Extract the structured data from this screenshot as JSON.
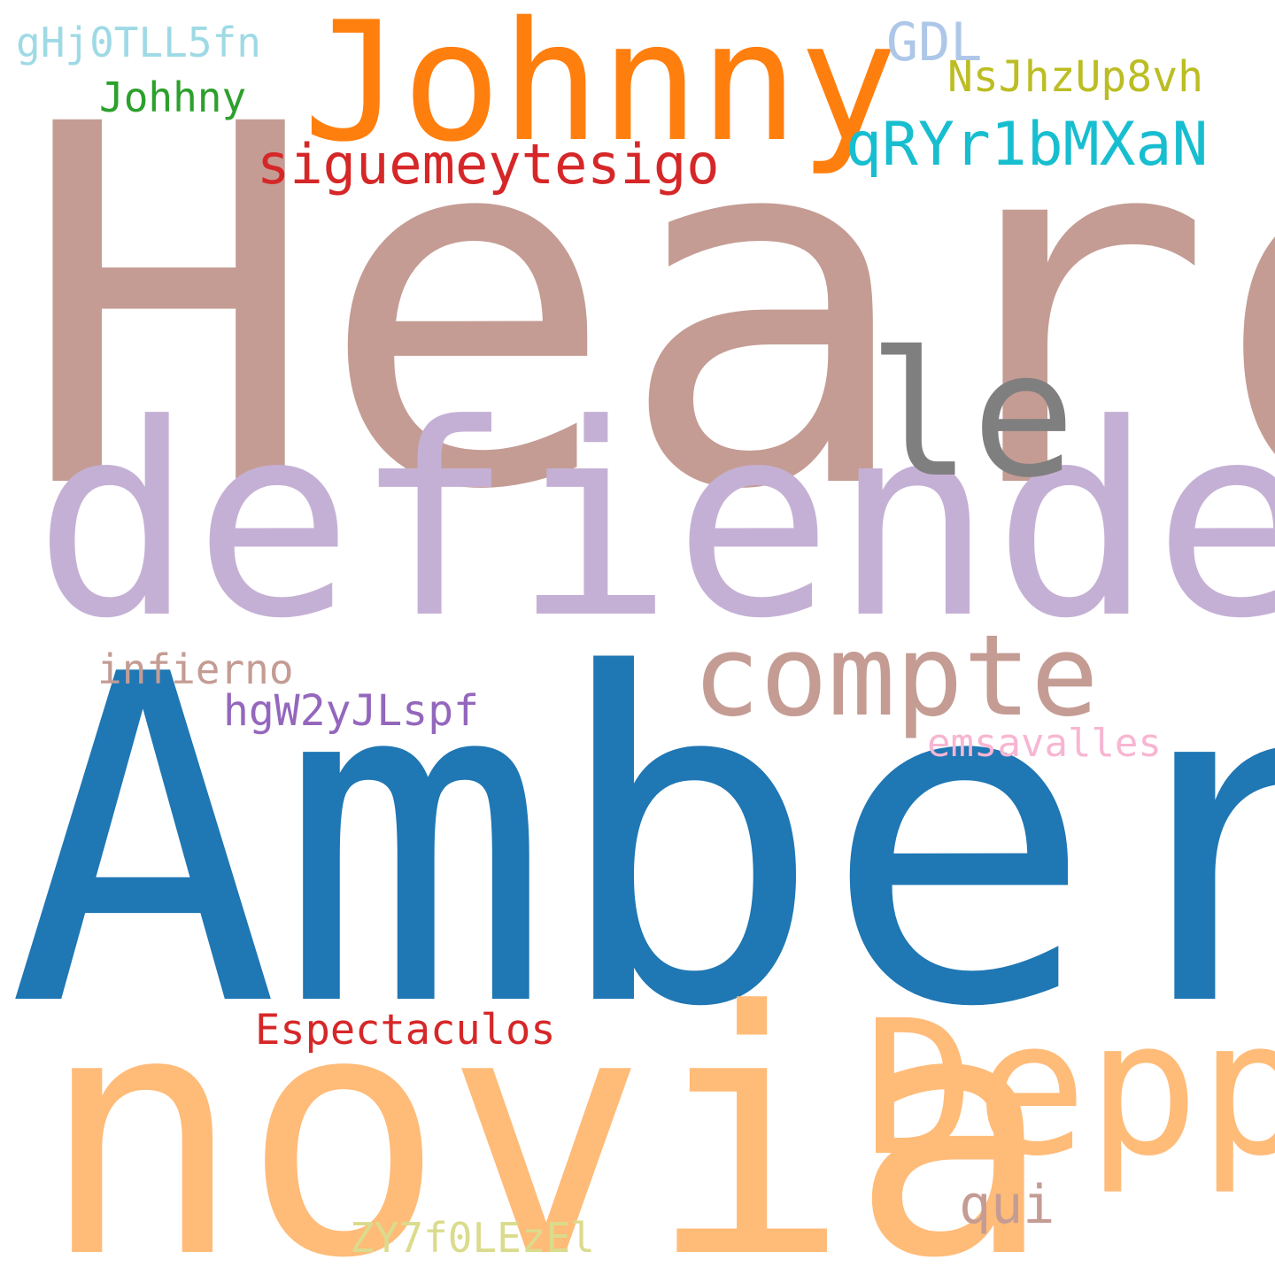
{
  "words": {
    "heard": {
      "text": "Heard",
      "color": "#c49c94"
    },
    "amber": {
      "text": "Amber",
      "color": "#1f77b4"
    },
    "defiende": {
      "text": "defiende",
      "color": "#c5b0d5"
    },
    "novia": {
      "text": "novia",
      "color": "#ffbb78"
    },
    "johnny": {
      "text": "Johnny",
      "color": "#ff7f0e"
    },
    "depp": {
      "text": "Depp",
      "color": "#ffbb78"
    },
    "le": {
      "text": "le",
      "color": "#7f7f7f"
    },
    "compte": {
      "text": "compte",
      "color": "#c49c94"
    },
    "siguemeytesigo": {
      "text": "siguemeytesigo",
      "color": "#d62728"
    },
    "qryr1bmxan": {
      "text": "qRYr1bMXaN",
      "color": "#17becf"
    },
    "gdl": {
      "text": "GDL",
      "color": "#aec7e8"
    },
    "nsjhzup8vh": {
      "text": "NsJhzUp8vh",
      "color": "#bcbd22"
    },
    "ghj0tll5fn": {
      "text": "gHj0TLL5fn",
      "color": "#9edae5"
    },
    "johhny": {
      "text": "Johhny",
      "color": "#2ca02c"
    },
    "infierno": {
      "text": "infierno",
      "color": "#c49c94"
    },
    "hgw2yjlspf": {
      "text": "hgW2yJLspf",
      "color": "#9467bd"
    },
    "emsavalles": {
      "text": "emsavalles",
      "color": "#f7b6d2"
    },
    "espectaculos": {
      "text": "Espectaculos",
      "color": "#d62728"
    },
    "qui": {
      "text": "qui",
      "color": "#c49c94"
    },
    "zy7f0lezel": {
      "text": "ZY7f0LEzEl",
      "color": "#dbdb8d"
    }
  },
  "background": "#ffffff"
}
